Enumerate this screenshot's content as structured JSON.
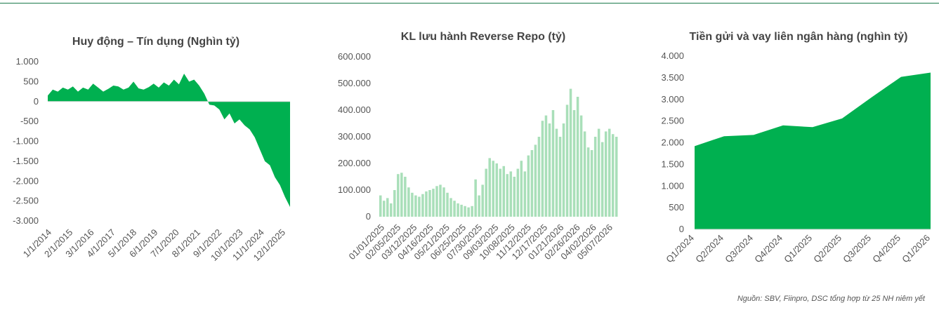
{
  "source_note": "Nguồn: SBV, Fiinpro, DSC tổng hợp từ 25 NH niêm yết",
  "colors": {
    "green": "#00b050",
    "light_green": "#a9dfb9",
    "border": "#1a7a4a"
  },
  "chart_data": [
    {
      "type": "area",
      "title": "Huy động – Tín dụng (Nghìn tỷ)",
      "ylim": [
        -3000,
        1000
      ],
      "y_ticks": [
        1000,
        500,
        0,
        -500,
        -1000,
        -1500,
        -2000,
        -2500,
        -3000
      ],
      "y_tick_labels": [
        "1.000",
        "500",
        "0",
        "-500",
        "-1.000",
        "-1.500",
        "-2.000",
        "-2.500",
        "-3.000"
      ],
      "x_tick_labels": [
        "1/1/2014",
        "2/1/2015",
        "3/1/2016",
        "4/1/2017",
        "5/1/2018",
        "6/1/2019",
        "7/1/2020",
        "8/1/2021",
        "9/1/2022",
        "10/1/2023",
        "11/1/2024",
        "12/1/2025"
      ],
      "x_start": "2014-01-01",
      "x_end": "2025-12-31",
      "series": [
        {
          "x": [
            "2014-01-01",
            "2014-04-01",
            "2014-07-01",
            "2014-10-01",
            "2015-01-01",
            "2015-04-01",
            "2015-07-01",
            "2015-10-01",
            "2016-01-01",
            "2016-04-01",
            "2016-07-01",
            "2016-10-01",
            "2017-01-01",
            "2017-04-01",
            "2017-07-01",
            "2017-10-01",
            "2018-01-01",
            "2018-04-01",
            "2018-07-01",
            "2018-10-01",
            "2019-01-01",
            "2019-04-01",
            "2019-07-01",
            "2019-10-01",
            "2020-01-01",
            "2020-04-01",
            "2020-07-01",
            "2020-10-01",
            "2021-01-01",
            "2021-04-01",
            "2021-07-01",
            "2021-10-01",
            "2022-01-01",
            "2022-04-01",
            "2022-07-01",
            "2022-10-01",
            "2023-01-01",
            "2023-04-01",
            "2023-07-01",
            "2023-10-01",
            "2024-01-01",
            "2024-04-01",
            "2024-07-01",
            "2024-10-01",
            "2025-01-01",
            "2025-04-01",
            "2025-07-01",
            "2025-10-01",
            "2025-12-31"
          ],
          "values": [
            150,
            300,
            250,
            350,
            300,
            380,
            250,
            350,
            300,
            450,
            350,
            250,
            320,
            400,
            380,
            300,
            350,
            500,
            330,
            300,
            360,
            450,
            350,
            480,
            400,
            550,
            430,
            700,
            500,
            550,
            400,
            200,
            -80,
            -100,
            -200,
            -450,
            -300,
            -550,
            -450,
            -600,
            -700,
            -900,
            -1200,
            -1500,
            -1600,
            -1900,
            -2100,
            -2400,
            -2650
          ]
        }
      ]
    },
    {
      "type": "bar",
      "title": "KL lưu hành Reverse Repo (tỷ)",
      "ylim": [
        0,
        600000
      ],
      "y_ticks": [
        600000,
        500000,
        400000,
        300000,
        200000,
        100000,
        0
      ],
      "y_tick_labels": [
        "600.000",
        "500.000",
        "400.000",
        "300.000",
        "200.000",
        "100.000",
        "0"
      ],
      "x_tick_labels": [
        "01/01/2025",
        "02/05/2025",
        "03/12/2025",
        "04/16/2025",
        "05/21/2025",
        "06/25/2025",
        "07/30/2025",
        "09/03/2025",
        "10/08/2025",
        "11/12/2025",
        "12/17/2025",
        "01/21/2026",
        "02/26/2026",
        "04/02/2026",
        "05/07/2026"
      ],
      "values": [
        80000,
        60000,
        70000,
        50000,
        100000,
        160000,
        165000,
        150000,
        110000,
        90000,
        80000,
        75000,
        85000,
        95000,
        100000,
        105000,
        115000,
        120000,
        110000,
        90000,
        70000,
        60000,
        50000,
        45000,
        40000,
        35000,
        40000,
        140000,
        80000,
        120000,
        180000,
        220000,
        210000,
        200000,
        180000,
        190000,
        160000,
        170000,
        150000,
        180000,
        210000,
        170000,
        230000,
        250000,
        270000,
        300000,
        360000,
        380000,
        350000,
        400000,
        330000,
        300000,
        350000,
        420000,
        480000,
        400000,
        450000,
        380000,
        320000,
        260000,
        250000,
        300000,
        330000,
        280000,
        320000,
        330000,
        310000,
        300000
      ]
    },
    {
      "type": "area",
      "title": "Tiền gửi và vay liên ngân hàng (nghìn tỷ)",
      "ylim": [
        0,
        4000
      ],
      "y_ticks": [
        4000,
        3500,
        3000,
        2500,
        2000,
        1500,
        1000,
        500,
        0
      ],
      "y_tick_labels": [
        "4.000",
        "3.500",
        "3.000",
        "2.500",
        "2.000",
        "1.500",
        "1.000",
        "500",
        "0"
      ],
      "categories": [
        "Q1/2024",
        "Q2/2024",
        "Q3/2024",
        "Q4/2024",
        "Q1/2025",
        "Q2/2025",
        "Q3/2025",
        "Q4/2025",
        "Q1/2026"
      ],
      "values": [
        1920,
        2150,
        2180,
        2400,
        2360,
        2560,
        3050,
        3520,
        3620
      ]
    }
  ]
}
